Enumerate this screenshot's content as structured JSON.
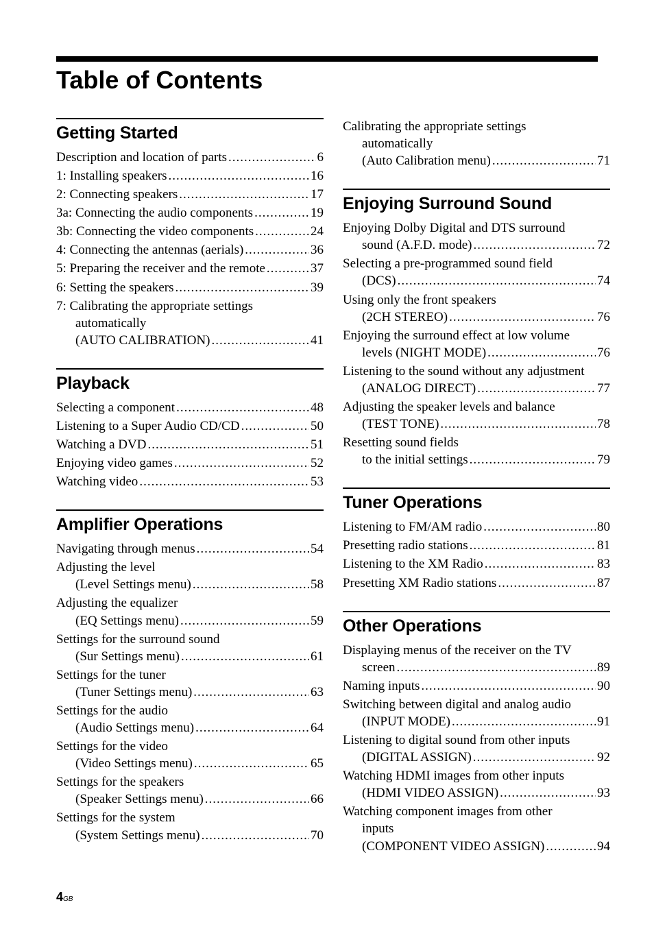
{
  "title": "Table of Contents",
  "footer": {
    "page": "4",
    "suffix": "GB"
  },
  "columns": [
    {
      "sections": [
        {
          "heading": "Getting Started",
          "entries": [
            {
              "lines": [
                "Description and location of parts"
              ],
              "page": "6"
            },
            {
              "lines": [
                "1: Installing speakers"
              ],
              "page": "16"
            },
            {
              "lines": [
                "2: Connecting speakers"
              ],
              "page": "17"
            },
            {
              "lines": [
                "3a: Connecting the audio components"
              ],
              "page": "19"
            },
            {
              "lines": [
                "3b: Connecting the video components"
              ],
              "page": "24"
            },
            {
              "lines": [
                "4: Connecting the antennas (aerials)"
              ],
              "page": "36"
            },
            {
              "lines": [
                "5: Preparing the receiver and the remote"
              ],
              "page": "37"
            },
            {
              "lines": [
                "6: Setting the speakers"
              ],
              "page": "39"
            },
            {
              "lines": [
                "7: Calibrating the appropriate settings"
              ],
              "sublines": [
                "automatically",
                "(AUTO CALIBRATION)"
              ],
              "page": "41"
            }
          ]
        },
        {
          "heading": "Playback",
          "entries": [
            {
              "lines": [
                "Selecting a component"
              ],
              "page": "48"
            },
            {
              "lines": [
                "Listening to a Super Audio CD/CD"
              ],
              "page": "50"
            },
            {
              "lines": [
                "Watching a DVD"
              ],
              "page": "51"
            },
            {
              "lines": [
                "Enjoying video games"
              ],
              "page": "52"
            },
            {
              "lines": [
                "Watching video"
              ],
              "page": "53"
            }
          ]
        },
        {
          "heading": "Amplifier Operations",
          "entries": [
            {
              "lines": [
                "Navigating through menus"
              ],
              "page": "54"
            },
            {
              "lines": [
                "Adjusting the level"
              ],
              "sublines": [
                "(Level Settings menu)"
              ],
              "page": "58"
            },
            {
              "lines": [
                "Adjusting the equalizer"
              ],
              "sublines": [
                "(EQ Settings menu)"
              ],
              "page": "59"
            },
            {
              "lines": [
                "Settings for the surround sound"
              ],
              "sublines": [
                "(Sur Settings menu)"
              ],
              "page": "61"
            },
            {
              "lines": [
                "Settings for the tuner"
              ],
              "sublines": [
                "(Tuner Settings menu)"
              ],
              "page": "63"
            },
            {
              "lines": [
                "Settings for the audio"
              ],
              "sublines": [
                "(Audio Settings menu)"
              ],
              "page": "64"
            },
            {
              "lines": [
                "Settings for the video"
              ],
              "sublines": [
                "(Video Settings menu)"
              ],
              "page": "65"
            },
            {
              "lines": [
                "Settings for the speakers"
              ],
              "sublines": [
                "(Speaker Settings menu)"
              ],
              "page": "66"
            },
            {
              "lines": [
                "Settings for the system"
              ],
              "sublines": [
                "(System Settings menu)"
              ],
              "page": "70"
            }
          ]
        }
      ]
    },
    {
      "sections": [
        {
          "heading": null,
          "entries": [
            {
              "lines": [
                "Calibrating the appropriate settings"
              ],
              "sublines": [
                "automatically",
                "(Auto Calibration menu)"
              ],
              "page": "71"
            }
          ]
        },
        {
          "heading": "Enjoying Surround Sound",
          "entries": [
            {
              "lines": [
                "Enjoying Dolby Digital and DTS surround"
              ],
              "sublines": [
                "sound (A.F.D. mode)"
              ],
              "page": "72"
            },
            {
              "lines": [
                "Selecting a pre-programmed sound field"
              ],
              "sublines": [
                "(DCS)"
              ],
              "page": "74"
            },
            {
              "lines": [
                "Using only the front speakers"
              ],
              "sublines": [
                "(2CH STEREO)"
              ],
              "page": "76"
            },
            {
              "lines": [
                "Enjoying the surround effect at low volume"
              ],
              "sublines": [
                "levels (NIGHT MODE)"
              ],
              "page": "76"
            },
            {
              "lines": [
                "Listening to the sound without any adjustment"
              ],
              "sublines": [
                "(ANALOG DIRECT)"
              ],
              "page": "77"
            },
            {
              "lines": [
                "Adjusting the speaker levels and balance"
              ],
              "sublines": [
                "(TEST TONE)"
              ],
              "page": "78"
            },
            {
              "lines": [
                "Resetting sound fields"
              ],
              "sublines": [
                "to the initial settings"
              ],
              "page": "79"
            }
          ]
        },
        {
          "heading": "Tuner Operations",
          "entries": [
            {
              "lines": [
                "Listening to FM/AM radio"
              ],
              "page": "80"
            },
            {
              "lines": [
                "Presetting radio stations"
              ],
              "page": "81"
            },
            {
              "lines": [
                "Listening to the XM Radio"
              ],
              "page": "83"
            },
            {
              "lines": [
                "Presetting XM Radio stations"
              ],
              "page": "87"
            }
          ]
        },
        {
          "heading": "Other Operations",
          "entries": [
            {
              "lines": [
                "Displaying menus of the receiver on the TV"
              ],
              "sublines": [
                "screen"
              ],
              "page": "89"
            },
            {
              "lines": [
                "Naming inputs"
              ],
              "page": "90"
            },
            {
              "lines": [
                "Switching between digital and analog audio"
              ],
              "sublines": [
                "(INPUT MODE)"
              ],
              "page": "91"
            },
            {
              "lines": [
                "Listening to digital sound from other inputs"
              ],
              "sublines": [
                "(DIGITAL ASSIGN)"
              ],
              "page": "92"
            },
            {
              "lines": [
                "Watching HDMI images from other inputs"
              ],
              "sublines": [
                "(HDMI VIDEO ASSIGN)"
              ],
              "page": "93"
            },
            {
              "lines": [
                "Watching component images from other"
              ],
              "sublines": [
                "inputs",
                "(COMPONENT VIDEO ASSIGN)"
              ],
              "page": "94"
            }
          ]
        }
      ]
    }
  ]
}
